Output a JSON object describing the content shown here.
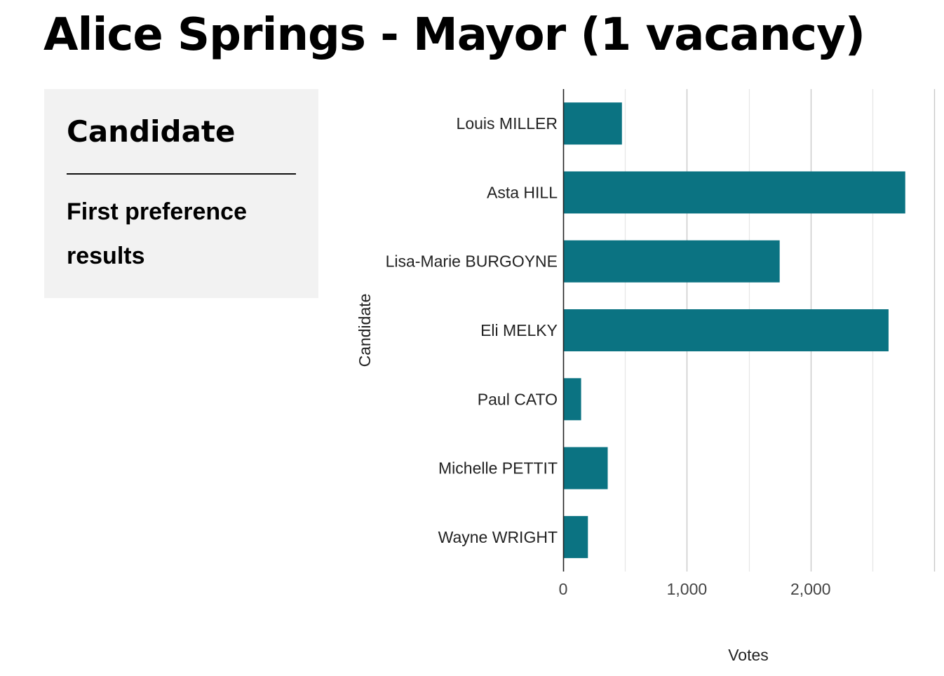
{
  "page": {
    "title": "Alice Springs - Mayor (1 vacancy)"
  },
  "panel": {
    "heading": "Candidate",
    "subheading": "First preference results"
  },
  "colors": {
    "bar": "#0b7382",
    "axis": "#222222",
    "grid_major": "#c8c8c8",
    "grid_minor": "#e6e6e6",
    "panel_bg": "#f2f2f2"
  },
  "chart_data": {
    "type": "bar",
    "orientation": "horizontal",
    "categories": [
      "Louis MILLER",
      "Asta HILL",
      "Lisa-Marie BURGOYNE",
      "Eli MELKY",
      "Paul CATO",
      "Michelle PETTIT",
      "Wayne WRIGHT"
    ],
    "values": [
      475,
      2765,
      1750,
      2630,
      145,
      360,
      200
    ],
    "xlabel": "Votes",
    "ylabel": "Candidate",
    "xlim": [
      0,
      3000
    ],
    "xticks": [
      {
        "value": 0,
        "label": "0"
      },
      {
        "value": 1000,
        "label": "1,000"
      },
      {
        "value": 2000,
        "label": "2,000"
      }
    ],
    "grid": true
  }
}
